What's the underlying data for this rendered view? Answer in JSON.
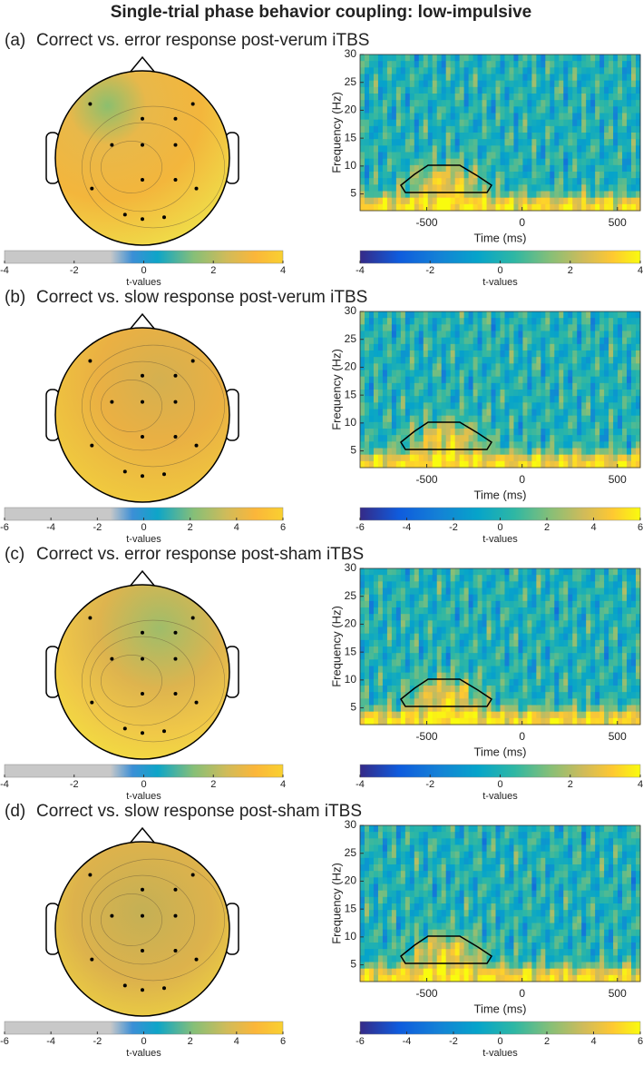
{
  "title": "Single-trial phase behavior coupling: low-impulsive",
  "panels": [
    {
      "label": "(a)",
      "title": "Correct vs. error response post-verum iTBS",
      "topo_colorbar": {
        "lim": [
          -4,
          4
        ],
        "ticks": [
          -4,
          -2,
          0,
          2,
          4
        ],
        "label": "t-values"
      },
      "tf": {
        "xlabel": "Time (ms)",
        "ylabel": "Frequency (Hz)",
        "xlim": [
          -850,
          620
        ],
        "xticks": [
          -500,
          0,
          500
        ],
        "ylim": [
          2,
          30
        ],
        "yticks": [
          5,
          10,
          15,
          20,
          25,
          30
        ],
        "colorbar": {
          "lim": [
            -4,
            4
          ],
          "ticks": [
            -4,
            -2,
            0,
            2,
            4
          ],
          "label": "t-values"
        }
      }
    },
    {
      "label": "(b)",
      "title": "Correct vs. slow response post-verum iTBS",
      "topo_colorbar": {
        "lim": [
          -6,
          6
        ],
        "ticks": [
          -6,
          -4,
          -2,
          0,
          2,
          4,
          6
        ],
        "label": "t-values"
      },
      "tf": {
        "xlabel": "Time (ms)",
        "ylabel": "Frequency (Hz)",
        "xlim": [
          -850,
          620
        ],
        "xticks": [
          -500,
          0,
          500
        ],
        "ylim": [
          2,
          30
        ],
        "yticks": [
          5,
          10,
          15,
          20,
          25,
          30
        ],
        "colorbar": {
          "lim": [
            -6,
            6
          ],
          "ticks": [
            -6,
            -4,
            -2,
            0,
            2,
            4,
            6
          ],
          "label": "t-values"
        }
      }
    },
    {
      "label": "(c)",
      "title": "Correct vs. error response post-sham iTBS",
      "topo_colorbar": {
        "lim": [
          -4,
          4
        ],
        "ticks": [
          -4,
          -2,
          0,
          2,
          4
        ],
        "label": "t-values"
      },
      "tf": {
        "xlabel": "Time (ms)",
        "ylabel": "Frequency (Hz)",
        "xlim": [
          -850,
          620
        ],
        "xticks": [
          -500,
          0,
          500
        ],
        "ylim": [
          2,
          30
        ],
        "yticks": [
          5,
          10,
          15,
          20,
          25,
          30
        ],
        "colorbar": {
          "lim": [
            -4,
            4
          ],
          "ticks": [
            -4,
            -2,
            0,
            2,
            4
          ],
          "label": "t-values"
        }
      }
    },
    {
      "label": "(d)",
      "title": "Correct vs. slow response post-sham iTBS",
      "topo_colorbar": {
        "lim": [
          -6,
          6
        ],
        "ticks": [
          -6,
          -4,
          -2,
          0,
          2,
          4,
          6
        ],
        "label": "t-values"
      },
      "tf": {
        "xlabel": "Time (ms)",
        "ylabel": "Frequency (Hz)",
        "xlim": [
          -850,
          620
        ],
        "xticks": [
          -500,
          0,
          500
        ],
        "ylim": [
          2,
          30
        ],
        "yticks": [
          5,
          10,
          15,
          20,
          25,
          30
        ],
        "colorbar": {
          "lim": [
            -6,
            6
          ],
          "ticks": [
            -6,
            -4,
            -2,
            0,
            2,
            4,
            6
          ],
          "label": "t-values"
        }
      }
    }
  ]
}
